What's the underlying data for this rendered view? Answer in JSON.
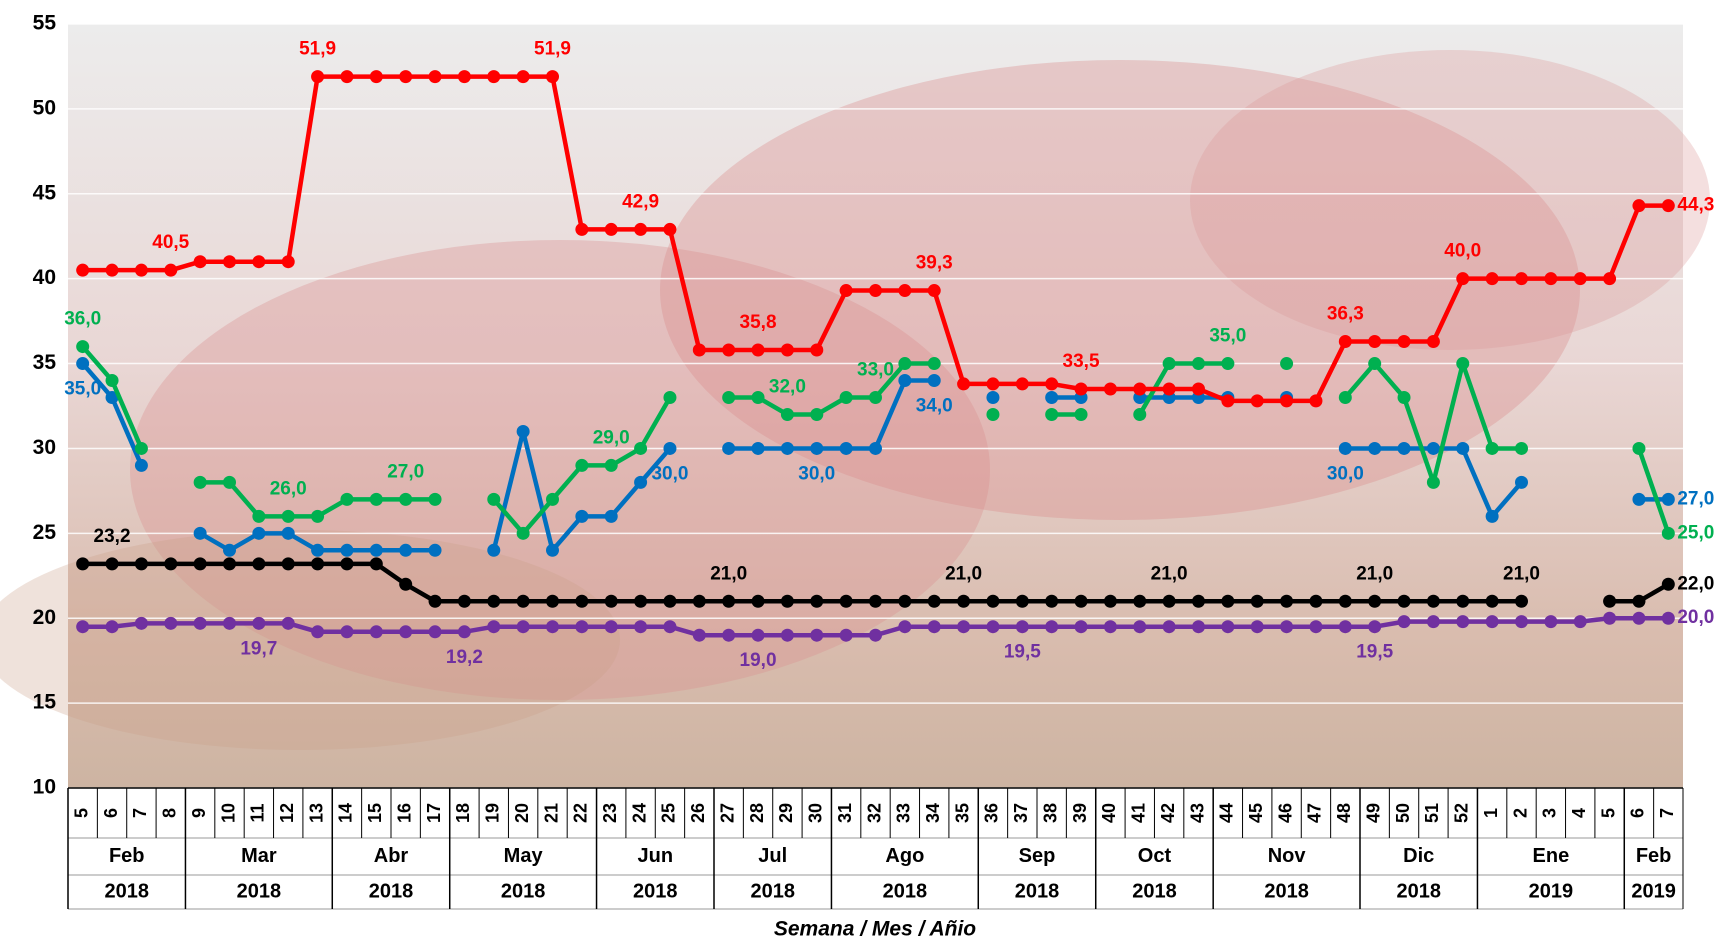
{
  "chart_data": {
    "type": "line",
    "x_axis_label": "Semana / Mes / Añio",
    "categories": [
      "5",
      "6",
      "7",
      "8",
      "9",
      "10",
      "11",
      "12",
      "13",
      "14",
      "15",
      "16",
      "17",
      "18",
      "19",
      "20",
      "21",
      "22",
      "23",
      "24",
      "25",
      "26",
      "27",
      "28",
      "29",
      "30",
      "31",
      "32",
      "33",
      "34",
      "35",
      "36",
      "37",
      "38",
      "39",
      "40",
      "41",
      "42",
      "43",
      "44",
      "45",
      "46",
      "47",
      "48",
      "49",
      "50",
      "51",
      "52",
      "1",
      "2",
      "3",
      "4",
      "5",
      "6",
      "7"
    ],
    "category_groups": [
      {
        "label": "Feb",
        "year": "2018",
        "span": 4
      },
      {
        "label": "Mar",
        "year": "2018",
        "span": 5
      },
      {
        "label": "Abr",
        "year": "2018",
        "span": 4
      },
      {
        "label": "May",
        "year": "2018",
        "span": 5
      },
      {
        "label": "Jun",
        "year": "2018",
        "span": 4
      },
      {
        "label": "Jul",
        "year": "2018",
        "span": 4
      },
      {
        "label": "Ago",
        "year": "2018",
        "span": 5
      },
      {
        "label": "Sep",
        "year": "2018",
        "span": 4
      },
      {
        "label": "Oct",
        "year": "2018",
        "span": 4
      },
      {
        "label": "Nov",
        "year": "2018",
        "span": 5
      },
      {
        "label": "Dic",
        "year": "2018",
        "span": 4
      },
      {
        "label": "Ene",
        "year": "2019",
        "span": 5
      },
      {
        "label": "Feb",
        "year": "2019",
        "span": 2
      }
    ],
    "ylim": [
      10,
      55
    ],
    "yticks": [
      10,
      15,
      20,
      25,
      30,
      35,
      40,
      45,
      50,
      55
    ],
    "grid": true,
    "series": [
      {
        "color": "#7030a0",
        "values": [
          19.5,
          19.5,
          19.7,
          19.7,
          19.7,
          19.7,
          19.7,
          19.7,
          19.2,
          19.2,
          19.2,
          19.2,
          19.2,
          19.2,
          19.5,
          19.5,
          19.5,
          19.5,
          19.5,
          19.5,
          19.5,
          19,
          19,
          19,
          19,
          19,
          19,
          19,
          19.5,
          19.5,
          19.5,
          19.5,
          19.5,
          19.5,
          19.5,
          19.5,
          19.5,
          19.5,
          19.5,
          19.5,
          19.5,
          19.5,
          19.5,
          19.5,
          19.5,
          19.8,
          19.8,
          19.8,
          19.8,
          19.8,
          19.8,
          19.8,
          20,
          20,
          20
        ],
        "value_labels": [
          null,
          null,
          null,
          null,
          null,
          null,
          "19,7",
          null,
          null,
          null,
          null,
          null,
          null,
          "19,2",
          null,
          null,
          null,
          null,
          null,
          null,
          null,
          null,
          null,
          "19,0",
          null,
          null,
          null,
          null,
          null,
          null,
          null,
          null,
          "19,5",
          null,
          null,
          null,
          null,
          null,
          null,
          null,
          null,
          null,
          null,
          null,
          "19,5",
          null,
          null,
          null,
          null,
          null,
          null,
          null,
          null,
          null,
          "20,0"
        ]
      },
      {
        "color": "#000000",
        "values": [
          23.2,
          23.2,
          23.2,
          23.2,
          23.2,
          23.2,
          23.2,
          23.2,
          23.2,
          23.2,
          23.2,
          22,
          21,
          21,
          21,
          21,
          21,
          21,
          21,
          21,
          21,
          21,
          21,
          21,
          21,
          21,
          21,
          21,
          21,
          21,
          21,
          21,
          21,
          21,
          21,
          21,
          21,
          21,
          21,
          21,
          21,
          21,
          21,
          21,
          21,
          21,
          21,
          21,
          21,
          21,
          null,
          null,
          21,
          21,
          22
        ],
        "value_labels": [
          null,
          "23,2",
          null,
          null,
          null,
          null,
          null,
          null,
          null,
          null,
          null,
          null,
          null,
          null,
          null,
          null,
          null,
          null,
          null,
          null,
          null,
          null,
          "21,0",
          null,
          null,
          null,
          null,
          null,
          null,
          null,
          "21,0",
          null,
          null,
          null,
          null,
          null,
          null,
          "21,0",
          null,
          null,
          null,
          null,
          null,
          null,
          "21,0",
          null,
          null,
          null,
          null,
          "21,0",
          null,
          null,
          null,
          null,
          "22,0"
        ]
      },
      {
        "color": "#0070c0",
        "values": [
          35,
          33,
          29,
          null,
          25,
          24,
          25,
          25,
          24,
          24,
          24,
          24,
          24,
          null,
          24,
          31,
          24,
          26,
          26,
          28,
          30,
          null,
          30,
          30,
          30,
          30,
          30,
          30,
          34,
          34,
          null,
          33,
          null,
          33,
          33,
          null,
          33,
          33,
          33,
          33,
          null,
          33,
          null,
          30,
          30,
          30,
          30,
          30,
          26,
          28,
          null,
          null,
          null,
          27,
          27
        ],
        "value_labels": [
          "35,0",
          null,
          null,
          null,
          null,
          null,
          null,
          null,
          null,
          null,
          null,
          null,
          null,
          null,
          null,
          null,
          null,
          null,
          null,
          null,
          "30,0",
          null,
          null,
          null,
          null,
          "30,0",
          null,
          null,
          null,
          "34,0",
          null,
          null,
          null,
          null,
          null,
          null,
          null,
          null,
          null,
          null,
          null,
          null,
          null,
          "30,0",
          null,
          null,
          null,
          null,
          null,
          null,
          null,
          null,
          null,
          null,
          "27,0"
        ]
      },
      {
        "color": "#00b050",
        "values": [
          36,
          34,
          30,
          null,
          28,
          28,
          26,
          26,
          26,
          27,
          27,
          27,
          27,
          null,
          27,
          25,
          27,
          29,
          29,
          30,
          33,
          null,
          33,
          33,
          32,
          32,
          33,
          33,
          35,
          35,
          null,
          32,
          null,
          32,
          32,
          null,
          32,
          35,
          35,
          35,
          null,
          35,
          null,
          33,
          35,
          33,
          28,
          35,
          30,
          30,
          null,
          null,
          null,
          30,
          25
        ],
        "value_labels": [
          "36,0",
          null,
          null,
          null,
          null,
          null,
          null,
          "26,0",
          null,
          null,
          null,
          "27,0",
          null,
          null,
          null,
          null,
          null,
          null,
          "29,0",
          null,
          null,
          null,
          null,
          null,
          "32,0",
          null,
          null,
          "33,0",
          null,
          null,
          null,
          null,
          null,
          null,
          null,
          null,
          null,
          null,
          null,
          "35,0",
          null,
          null,
          null,
          null,
          null,
          null,
          null,
          null,
          null,
          null,
          null,
          null,
          null,
          null,
          "25,0"
        ]
      },
      {
        "color": "#ff0000",
        "values": [
          40.5,
          40.5,
          40.5,
          40.5,
          41,
          41,
          41,
          41,
          51.9,
          51.9,
          51.9,
          51.9,
          51.9,
          51.9,
          51.9,
          51.9,
          51.9,
          42.9,
          42.9,
          42.9,
          42.9,
          35.8,
          35.8,
          35.8,
          35.8,
          35.8,
          39.3,
          39.3,
          39.3,
          39.3,
          33.8,
          33.8,
          33.8,
          33.8,
          33.5,
          33.5,
          33.5,
          33.5,
          33.5,
          32.8,
          32.8,
          32.8,
          32.8,
          36.3,
          36.3,
          36.3,
          36.3,
          40,
          40,
          40,
          40,
          40,
          40,
          44.3,
          44.3
        ],
        "value_labels": [
          null,
          null,
          null,
          "40,5",
          null,
          null,
          null,
          null,
          "51,9",
          null,
          null,
          null,
          null,
          null,
          null,
          null,
          "51,9",
          null,
          null,
          "42,9",
          null,
          null,
          null,
          "35,8",
          null,
          null,
          null,
          null,
          null,
          "39,3",
          null,
          null,
          null,
          null,
          "33,5",
          null,
          null,
          null,
          null,
          null,
          null,
          null,
          null,
          "36,3",
          null,
          null,
          null,
          "40,0",
          null,
          null,
          null,
          null,
          null,
          null,
          "44,3"
        ]
      }
    ]
  }
}
